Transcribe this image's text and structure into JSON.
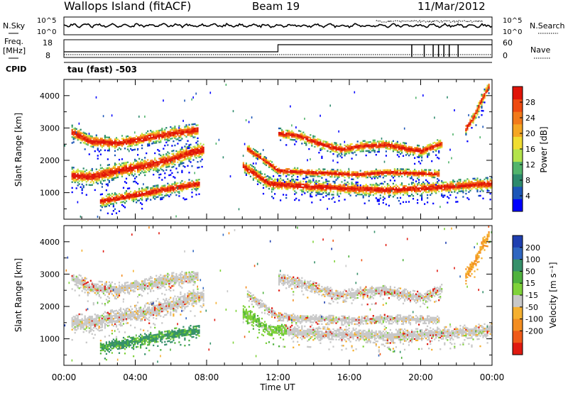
{
  "header": {
    "site": "Wallops Island (fitACF)",
    "beam": "Beam 19",
    "date": "11/Mar/2012"
  },
  "panels": {
    "nsky_label": "N.Sky",
    "nsearch_label": "N.Search",
    "nsky_ticks": [
      "10^5",
      "10^0"
    ],
    "nsky_right_ticks": [
      "10^5",
      "10^0"
    ],
    "freq_label_1": "Freq.",
    "freq_label_2": "[MHz]",
    "freq_ticks": [
      "18",
      "8"
    ],
    "nave_label": "Nave",
    "nave_ticks": [
      "60",
      "0"
    ],
    "cpid_label": "CPID",
    "cpid_text": "tau (fast) -503"
  },
  "chart_data": [
    {
      "type": "heatmap",
      "title": "",
      "xlabel": "Time UT",
      "ylabel": "Slant Range [km]",
      "x_ticks": [
        "00:00",
        "04:00",
        "08:00",
        "12:00",
        "16:00",
        "20:00",
        "00:00"
      ],
      "xlim_hours": [
        0,
        24
      ],
      "y_ticks": [
        1000,
        2000,
        3000,
        4000
      ],
      "ylim": [
        180,
        4500
      ],
      "colorbar": {
        "label": "Power [dB]",
        "ticks": [
          4,
          8,
          12,
          16,
          20,
          24,
          28
        ],
        "range": [
          0,
          32
        ],
        "colors": [
          "#0000ff",
          "#1c56b8",
          "#2d8a6c",
          "#52b46b",
          "#b3e34c",
          "#f0dd32",
          "#f5a623",
          "#f27a1a",
          "#ee4a10",
          "#e01408"
        ]
      },
      "bands": [
        {
          "t": [
            0.4,
            1.5,
            3.0,
            4.5,
            6.0,
            7.0,
            7.8
          ],
          "r": [
            1550,
            1500,
            1700,
            1850,
            2050,
            2250,
            2350
          ],
          "w": 200
        },
        {
          "t": [
            2.0,
            3.5,
            5.0,
            6.5,
            7.6
          ],
          "r": [
            750,
            900,
            1050,
            1200,
            1300
          ],
          "w": 150
        },
        {
          "t": [
            0.4,
            1.5,
            3.0,
            4.5,
            6.0,
            7.5
          ],
          "r": [
            2900,
            2600,
            2550,
            2700,
            2850,
            2950
          ],
          "w": 170
        },
        {
          "t": [
            10.0,
            10.8,
            11.5,
            12.5,
            14.0,
            16.0,
            18.0,
            20.0,
            21.5,
            22.5,
            24.0
          ],
          "r": [
            1850,
            1550,
            1300,
            1250,
            1200,
            1150,
            1100,
            1150,
            1200,
            1250,
            1300
          ],
          "w": 160
        },
        {
          "t": [
            10.2,
            11.0,
            12.0,
            13.5,
            15.0,
            16.5,
            18.0,
            19.5,
            21.0
          ],
          "r": [
            2400,
            2100,
            1700,
            1650,
            1620,
            1580,
            1650,
            1620,
            1600
          ],
          "w": 110
        },
        {
          "t": [
            12.0,
            13.0,
            14.5,
            15.5,
            16.5,
            18.0,
            19.0,
            20.0,
            21.2
          ],
          "r": [
            2850,
            2800,
            2500,
            2350,
            2450,
            2500,
            2400,
            2300,
            2550
          ],
          "w": 140
        },
        {
          "t": [
            22.5,
            23.0,
            23.4,
            23.8
          ],
          "r": [
            3000,
            3400,
            3900,
            4300
          ],
          "w": 150
        }
      ]
    },
    {
      "type": "heatmap",
      "title": "",
      "xlabel": "Time UT",
      "ylabel": "Slant Range [km]",
      "x_ticks": [
        "00:00",
        "04:00",
        "08:00",
        "12:00",
        "16:00",
        "20:00",
        "00:00"
      ],
      "y_ticks": [
        1000,
        2000,
        3000,
        4000
      ],
      "ylim": [
        180,
        4500
      ],
      "colorbar": {
        "label": "Velocity [m s⁻¹]",
        "ticks": [
          200,
          100,
          50,
          15,
          -15,
          -50,
          -100,
          -200
        ],
        "colors": [
          "#1f3fb0",
          "#2f66c0",
          "#36906a",
          "#4fb23e",
          "#7fd23a",
          "#c8c8c8",
          "#f5b030",
          "#f38d20",
          "#ef5a18",
          "#e01a10"
        ]
      }
    }
  ]
}
